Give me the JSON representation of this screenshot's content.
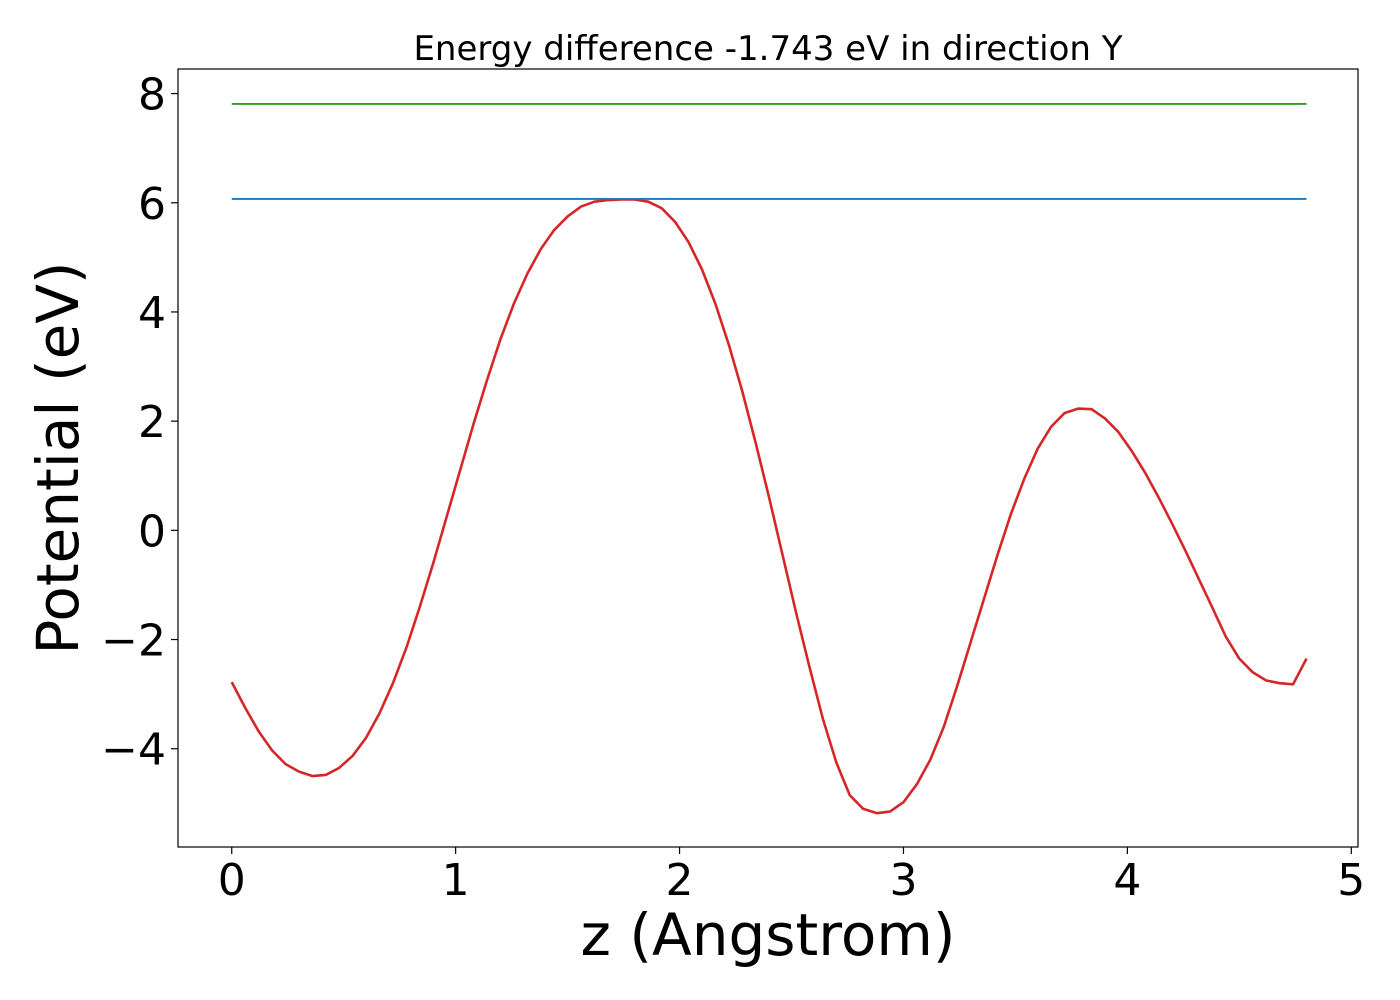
{
  "chart_data": {
    "type": "line",
    "title": "Energy difference -1.743 eV in direction Y",
    "xlabel": "z (Angstrom)",
    "ylabel": "Potential (eV)",
    "xlim": [
      -0.24,
      5.03
    ],
    "ylim": [
      -5.8,
      8.45
    ],
    "x_ticks": [
      0,
      1,
      2,
      3,
      4,
      5
    ],
    "x_tick_labels": [
      "0",
      "1",
      "2",
      "3",
      "4",
      "5"
    ],
    "y_ticks": [
      -4,
      -2,
      0,
      2,
      4,
      6,
      8
    ],
    "y_tick_labels": [
      "−4",
      "−2",
      "0",
      "2",
      "4",
      "6",
      "8"
    ],
    "grid": false,
    "legend": "none",
    "series": [
      {
        "color": "#d62728",
        "x": [
          0.0,
          0.06,
          0.12,
          0.18,
          0.24,
          0.3,
          0.36,
          0.42,
          0.48,
          0.54,
          0.6,
          0.66,
          0.72,
          0.78,
          0.84,
          0.9,
          0.96,
          1.02,
          1.08,
          1.14,
          1.2,
          1.26,
          1.32,
          1.38,
          1.44,
          1.5,
          1.56,
          1.62,
          1.68,
          1.74,
          1.8,
          1.86,
          1.92,
          1.98,
          2.04,
          2.1,
          2.16,
          2.22,
          2.28,
          2.34,
          2.4,
          2.46,
          2.52,
          2.58,
          2.64,
          2.7,
          2.76,
          2.82,
          2.88,
          2.94,
          3.0,
          3.06,
          3.12,
          3.18,
          3.24,
          3.3,
          3.36,
          3.42,
          3.48,
          3.54,
          3.6,
          3.66,
          3.72,
          3.78,
          3.84,
          3.9,
          3.96,
          4.02,
          4.08,
          4.14,
          4.2,
          4.26,
          4.32,
          4.38,
          4.44,
          4.5,
          4.56,
          4.62,
          4.68,
          4.74,
          4.8
        ],
        "values": [
          -2.78,
          -3.25,
          -3.68,
          -4.03,
          -4.28,
          -4.42,
          -4.5,
          -4.48,
          -4.35,
          -4.13,
          -3.8,
          -3.35,
          -2.8,
          -2.15,
          -1.4,
          -0.6,
          0.25,
          1.1,
          1.95,
          2.75,
          3.5,
          4.15,
          4.7,
          5.15,
          5.5,
          5.75,
          5.93,
          6.02,
          6.05,
          6.06,
          6.06,
          6.02,
          5.9,
          5.65,
          5.28,
          4.78,
          4.15,
          3.4,
          2.55,
          1.6,
          0.6,
          -0.45,
          -1.5,
          -2.5,
          -3.45,
          -4.25,
          -4.85,
          -5.1,
          -5.18,
          -5.15,
          -4.98,
          -4.65,
          -4.2,
          -3.6,
          -2.85,
          -2.05,
          -1.25,
          -0.45,
          0.3,
          0.95,
          1.5,
          1.9,
          2.15,
          2.23,
          2.22,
          2.05,
          1.8,
          1.45,
          1.05,
          0.6,
          0.12,
          -0.38,
          -0.9,
          -1.42,
          -1.95,
          -2.35,
          -2.6,
          -2.75,
          -2.8,
          -2.82,
          -2.35
        ]
      },
      {
        "color": "#1f77b4",
        "x": [
          0.0,
          4.8
        ],
        "values": [
          6.07,
          6.07
        ]
      },
      {
        "color": "#2ca02c",
        "x": [
          0.0,
          4.8
        ],
        "values": [
          7.81,
          7.81
        ]
      }
    ]
  }
}
